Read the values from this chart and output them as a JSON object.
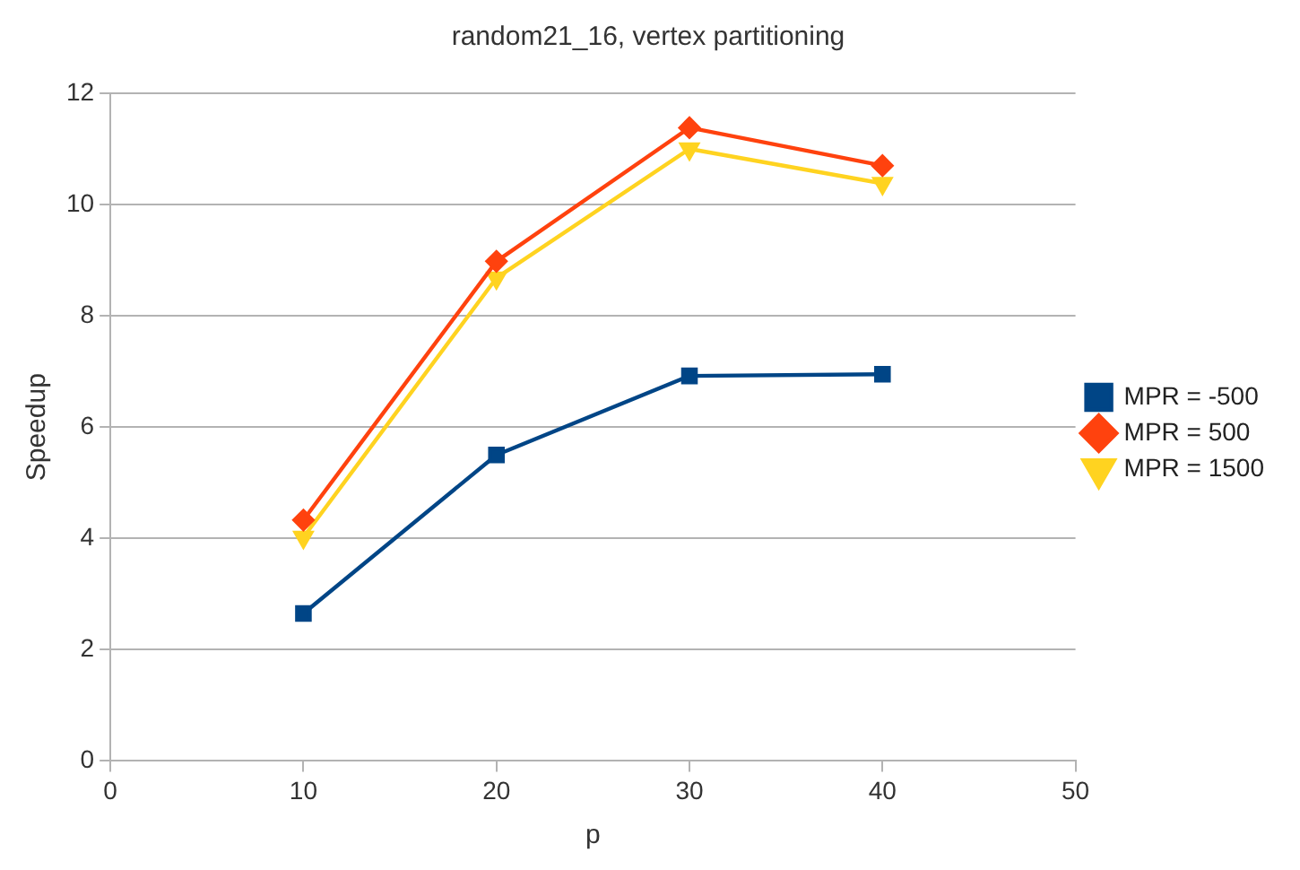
{
  "chart_data": {
    "type": "line",
    "title": "random21_16, vertex partitioning",
    "xlabel": "p",
    "ylabel": "Speedup",
    "x": [
      10,
      20,
      30,
      40
    ],
    "series": [
      {
        "name": "MPR = -500",
        "color": "#004586",
        "marker": "square",
        "values": [
          2.65,
          5.5,
          6.92,
          6.95
        ]
      },
      {
        "name": "MPR = 500",
        "color": "#ff420e",
        "marker": "diamond",
        "values": [
          4.33,
          8.98,
          11.38,
          10.7
        ]
      },
      {
        "name": "MPR = 1500",
        "color": "#ffd320",
        "marker": "triangle",
        "values": [
          4.02,
          8.68,
          11.0,
          10.38
        ]
      }
    ],
    "xlim": [
      0,
      50
    ],
    "xticks": [
      0,
      10,
      20,
      30,
      40,
      50
    ],
    "ylim": [
      0,
      12
    ],
    "yticks": [
      0,
      2,
      4,
      6,
      8,
      10,
      12
    ],
    "grid": "y",
    "legend": "right",
    "line_style": "solid"
  }
}
